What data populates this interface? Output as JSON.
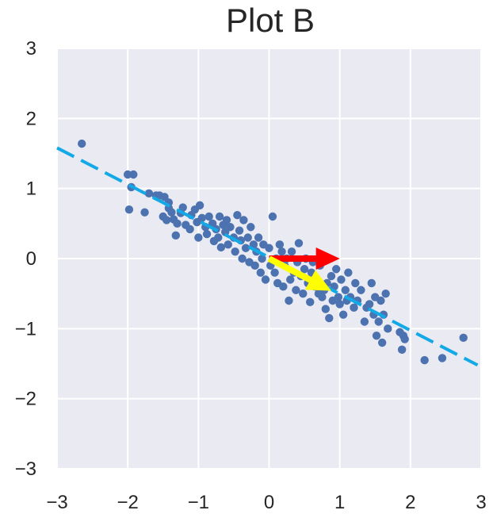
{
  "chart_data": {
    "type": "scatter",
    "title": "Plot B",
    "xlabel": "",
    "ylabel": "",
    "xlim": [
      -3,
      3
    ],
    "ylim": [
      -3,
      3
    ],
    "x_ticks": [
      -3,
      -2,
      -1,
      0,
      1,
      2,
      3
    ],
    "y_ticks": [
      -3,
      -2,
      -1,
      0,
      1,
      2,
      3
    ],
    "x_tick_labels": [
      "−3",
      "−2",
      "−1",
      "0",
      "1",
      "2",
      "3"
    ],
    "y_tick_labels": [
      "−3",
      "−2",
      "−1",
      "0",
      "1",
      "2",
      "3"
    ],
    "grid": true,
    "colors": {
      "background": "#eaeaf2",
      "grid": "#ffffff",
      "points": "#4c72b0",
      "fit_line": "#12a9e6",
      "arrow_x": "#ff0000",
      "arrow_fit": "#ffff00"
    },
    "series": [
      {
        "points": [
          [
            -2.65,
            1.64
          ],
          [
            -2.0,
            1.2
          ],
          [
            -1.92,
            1.2
          ],
          [
            -1.95,
            1.02
          ],
          [
            -1.98,
            0.7
          ],
          [
            -1.76,
            0.66
          ],
          [
            -1.7,
            0.93
          ],
          [
            -1.6,
            0.9
          ],
          [
            -1.55,
            0.9
          ],
          [
            -1.48,
            0.88
          ],
          [
            -1.42,
            0.8
          ],
          [
            -1.42,
            0.72
          ],
          [
            -1.5,
            0.6
          ],
          [
            -1.45,
            0.55
          ],
          [
            -1.38,
            0.66
          ],
          [
            -1.35,
            0.56
          ],
          [
            -1.3,
            0.5
          ],
          [
            -1.32,
            0.33
          ],
          [
            -1.25,
            0.65
          ],
          [
            -1.22,
            0.73
          ],
          [
            -1.18,
            0.48
          ],
          [
            -1.12,
            0.42
          ],
          [
            -1.1,
            0.62
          ],
          [
            -1.05,
            0.7
          ],
          [
            -1.02,
            0.52
          ],
          [
            -1.0,
            0.3
          ],
          [
            -0.98,
            0.76
          ],
          [
            -0.95,
            0.58
          ],
          [
            -0.9,
            0.45
          ],
          [
            -0.88,
            0.35
          ],
          [
            -0.85,
            0.6
          ],
          [
            -0.8,
            0.5
          ],
          [
            -0.78,
            0.25
          ],
          [
            -0.75,
            0.42
          ],
          [
            -0.72,
            0.3
          ],
          [
            -0.7,
            0.6
          ],
          [
            -0.68,
            0.16
          ],
          [
            -0.65,
            0.48
          ],
          [
            -0.62,
            0.38
          ],
          [
            -0.6,
            0.55
          ],
          [
            -0.58,
            0.2
          ],
          [
            -0.55,
            0.45
          ],
          [
            -0.5,
            0.3
          ],
          [
            -0.48,
            0.1
          ],
          [
            -0.45,
            0.62
          ],
          [
            -0.42,
            0.4
          ],
          [
            -0.4,
            0.26
          ],
          [
            -0.38,
            0.0
          ],
          [
            -0.36,
            0.55
          ],
          [
            -0.33,
            0.15
          ],
          [
            -0.3,
            0.3
          ],
          [
            -0.28,
            -0.05
          ],
          [
            -0.26,
            0.45
          ],
          [
            -0.22,
            0.2
          ],
          [
            -0.2,
            -0.1
          ],
          [
            -0.18,
            0.1
          ],
          [
            -0.15,
            0.3
          ],
          [
            -0.12,
            -0.2
          ],
          [
            -0.1,
            0.0
          ],
          [
            -0.08,
            0.2
          ],
          [
            -0.05,
            -0.3
          ],
          [
            0.0,
            0.15
          ],
          [
            0.02,
            -0.1
          ],
          [
            0.05,
            0.6
          ],
          [
            0.08,
            -0.2
          ],
          [
            0.1,
            0.0
          ],
          [
            0.12,
            -0.35
          ],
          [
            0.15,
            0.2
          ],
          [
            0.18,
            0.1
          ],
          [
            0.2,
            -0.4
          ],
          [
            0.22,
            -0.1
          ],
          [
            0.25,
            0.0
          ],
          [
            0.28,
            -0.6
          ],
          [
            0.3,
            -0.3
          ],
          [
            0.32,
            0.1
          ],
          [
            0.35,
            -0.2
          ],
          [
            0.38,
            -0.45
          ],
          [
            0.4,
            -0.05
          ],
          [
            0.42,
            0.22
          ],
          [
            0.45,
            -0.25
          ],
          [
            0.48,
            -0.5
          ],
          [
            0.5,
            -0.15
          ],
          [
            0.52,
            0.0
          ],
          [
            0.55,
            -0.35
          ],
          [
            0.58,
            -0.62
          ],
          [
            0.6,
            -0.2
          ],
          [
            0.62,
            -0.05
          ],
          [
            0.65,
            -0.4
          ],
          [
            0.68,
            -0.3
          ],
          [
            0.7,
            -0.5
          ],
          [
            0.72,
            -0.1
          ],
          [
            0.75,
            -0.55
          ],
          [
            0.78,
            -0.45
          ],
          [
            0.8,
            -0.72
          ],
          [
            0.82,
            -0.35
          ],
          [
            0.85,
            -0.85
          ],
          [
            0.88,
            -0.25
          ],
          [
            0.9,
            -0.6
          ],
          [
            0.92,
            -0.4
          ],
          [
            0.95,
            -0.15
          ],
          [
            0.98,
            -0.55
          ],
          [
            1.0,
            -0.65
          ],
          [
            1.02,
            -0.3
          ],
          [
            1.05,
            -0.8
          ],
          [
            1.08,
            -0.45
          ],
          [
            1.1,
            -0.6
          ],
          [
            1.12,
            -0.2
          ],
          [
            1.15,
            -0.55
          ],
          [
            1.2,
            -0.7
          ],
          [
            1.22,
            -0.35
          ],
          [
            1.25,
            -0.6
          ],
          [
            1.3,
            -0.45
          ],
          [
            1.35,
            -0.9
          ],
          [
            1.38,
            -0.7
          ],
          [
            1.42,
            -0.65
          ],
          [
            1.45,
            -0.35
          ],
          [
            1.48,
            -0.8
          ],
          [
            1.5,
            -0.55
          ],
          [
            1.52,
            -1.1
          ],
          [
            1.55,
            -0.9
          ],
          [
            1.58,
            -0.6
          ],
          [
            1.6,
            -1.2
          ],
          [
            1.62,
            -0.8
          ],
          [
            1.65,
            -0.5
          ],
          [
            1.68,
            -1.0
          ],
          [
            1.85,
            -1.05
          ],
          [
            1.88,
            -1.3
          ],
          [
            1.9,
            -1.1
          ],
          [
            1.92,
            -1.15
          ],
          [
            2.2,
            -1.45
          ],
          [
            2.45,
            -1.42
          ],
          [
            2.75,
            -1.13
          ]
        ]
      }
    ],
    "fit_line": {
      "x1": -3.0,
      "y1": 1.58,
      "x2": 2.95,
      "y2": -1.52
    },
    "arrows": [
      {
        "name": "red",
        "x1": 0.0,
        "y1": 0.0,
        "x2": 1.0,
        "y2": 0.0
      },
      {
        "name": "yellow",
        "x1": 0.0,
        "y1": 0.0,
        "x2": 0.88,
        "y2": -0.46
      }
    ]
  }
}
